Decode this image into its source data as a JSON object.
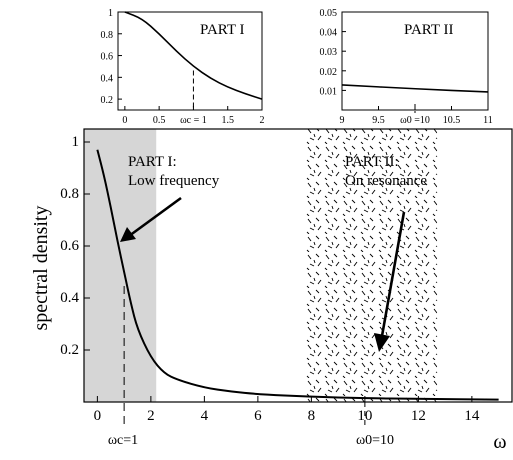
{
  "chart_data": [
    {
      "id": "main",
      "type": "line",
      "title": "",
      "xlabel": "ω",
      "ylabel": "spectral density",
      "xlim": [
        -0.5,
        15.5
      ],
      "ylim": [
        0,
        1.05
      ],
      "x_ticks": [
        "0",
        "2",
        "4",
        "6",
        "8",
        "10",
        "12",
        "14"
      ],
      "x_tick_values": [
        0,
        2,
        4,
        6,
        8,
        10,
        12,
        14
      ],
      "y_ticks": [
        "0.2",
        "0.4",
        "0.6",
        "0.8",
        "1"
      ],
      "y_tick_values": [
        0.2,
        0.4,
        0.6,
        0.8,
        1
      ],
      "series": [
        {
          "x": [
            0,
            0.25,
            0.5,
            0.75,
            1,
            1.25,
            1.5,
            2,
            2.5,
            3,
            4,
            5,
            6,
            8,
            10,
            12,
            15
          ],
          "y": [
            0.97,
            0.87,
            0.75,
            0.62,
            0.5,
            0.38,
            0.28,
            0.17,
            0.11,
            0.085,
            0.055,
            0.04,
            0.03,
            0.02,
            0.015,
            0.012,
            0.009
          ]
        }
      ],
      "regions": [
        {
          "label": "PART I:",
          "sublabel": "Low frequency",
          "x_range": [
            -0.5,
            2.2
          ],
          "fill": "gray"
        },
        {
          "label": "PART II:",
          "sublabel": "On resonance",
          "x_range": [
            7.8,
            12.7
          ],
          "fill": "dashed-pattern"
        }
      ],
      "markers": [
        {
          "x": 1,
          "label": "ωc=1"
        },
        {
          "x": 10,
          "label": "ω0=10"
        }
      ]
    },
    {
      "id": "inset_part1",
      "type": "line",
      "title": "PART I",
      "xlim": [
        -0.1,
        2
      ],
      "ylim": [
        0.1,
        1
      ],
      "x_ticks": [
        "0",
        "0.5",
        "ωc = 1",
        "1.5",
        "2"
      ],
      "x_tick_values": [
        0,
        0.5,
        1,
        1.5,
        2
      ],
      "y_ticks": [
        "0.2",
        "0.4",
        "0.6",
        "0.8",
        "1"
      ],
      "y_tick_values": [
        0.2,
        0.4,
        0.6,
        0.8,
        1
      ],
      "series": [
        {
          "x": [
            0,
            0.25,
            0.5,
            0.75,
            1,
            1.25,
            1.5,
            1.75,
            2
          ],
          "y": [
            1.0,
            0.94,
            0.8,
            0.64,
            0.5,
            0.39,
            0.31,
            0.25,
            0.2
          ]
        }
      ],
      "marker": {
        "x": 1
      }
    },
    {
      "id": "inset_part2",
      "type": "line",
      "title": "PART II",
      "xlim": [
        9,
        11
      ],
      "ylim": [
        0,
        0.05
      ],
      "x_ticks": [
        "9",
        "9.5",
        "ω0 =10",
        "10.5",
        "11"
      ],
      "x_tick_values": [
        9,
        9.5,
        10,
        10.5,
        11
      ],
      "y_ticks": [
        "0.01",
        "0.02",
        "0.03",
        "0.04",
        "0.05"
      ],
      "y_tick_values": [
        0.01,
        0.02,
        0.03,
        0.04,
        0.05
      ],
      "series": [
        {
          "x": [
            9,
            10,
            11
          ],
          "y": [
            0.0128,
            0.0108,
            0.0092
          ]
        }
      ],
      "marker": {
        "x": 10
      }
    }
  ]
}
